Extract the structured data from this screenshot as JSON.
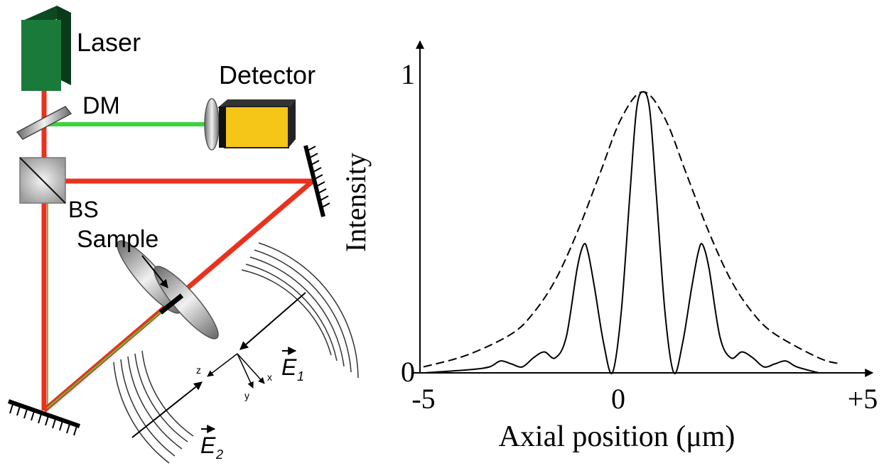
{
  "diagram": {
    "labels": {
      "laser": "Laser",
      "dm": "DM",
      "detector": "Detector",
      "bs": "BS",
      "sample": "Sample",
      "axis_z": "z",
      "axis_y": "y",
      "axis_x": "x",
      "field_1": "E",
      "field_1_sub": "1",
      "field_2": "E",
      "field_2_sub": "2"
    },
    "colors": {
      "laser_body": "#1a7a3a",
      "detector_body": "#f5c518",
      "beam_red": "#e8321e",
      "beam_green": "#3ed23e"
    }
  },
  "chart_data": {
    "type": "line",
    "xlabel": "Axial position (μm)",
    "ylabel": "Intensity",
    "xlim": [
      -5,
      5
    ],
    "ylim": [
      0,
      1
    ],
    "x_ticks": [
      "-5",
      "0",
      "+5"
    ],
    "y_ticks": [
      "0",
      "1"
    ],
    "series": [
      {
        "style": "dashed",
        "x": [
          -5,
          -4,
          -3,
          -2.5,
          -2,
          -1.5,
          -1,
          -0.5,
          0,
          0.5,
          1,
          1.5,
          2,
          2.5,
          3,
          4,
          4.5
        ],
        "y": [
          0.02,
          0.06,
          0.13,
          0.2,
          0.31,
          0.47,
          0.66,
          0.85,
          0.94,
          0.85,
          0.66,
          0.47,
          0.31,
          0.2,
          0.13,
          0.05,
          0.03
        ]
      },
      {
        "style": "solid",
        "x": [
          -5,
          -4,
          -3.5,
          -3.25,
          -3,
          -2.75,
          -2.5,
          -2.25,
          -2,
          -1.75,
          -1.5,
          -1.35,
          -1.25,
          -1.1,
          -0.9,
          -0.7,
          -0.5,
          -0.3,
          -0.15,
          0,
          0.15,
          0.3,
          0.5,
          0.7,
          0.9,
          1.1,
          1.25,
          1.35,
          1.5,
          1.75,
          2,
          2.25,
          2.5,
          2.75,
          3,
          3.25,
          3.5,
          4
        ],
        "y": [
          0.0,
          0.01,
          0.02,
          0.04,
          0.03,
          0.02,
          0.05,
          0.07,
          0.05,
          0.12,
          0.35,
          0.43,
          0.4,
          0.28,
          0.1,
          0.0,
          0.2,
          0.6,
          0.88,
          0.94,
          0.88,
          0.6,
          0.2,
          0.0,
          0.1,
          0.28,
          0.4,
          0.43,
          0.35,
          0.12,
          0.05,
          0.07,
          0.05,
          0.02,
          0.03,
          0.04,
          0.02,
          0.0
        ]
      }
    ]
  }
}
